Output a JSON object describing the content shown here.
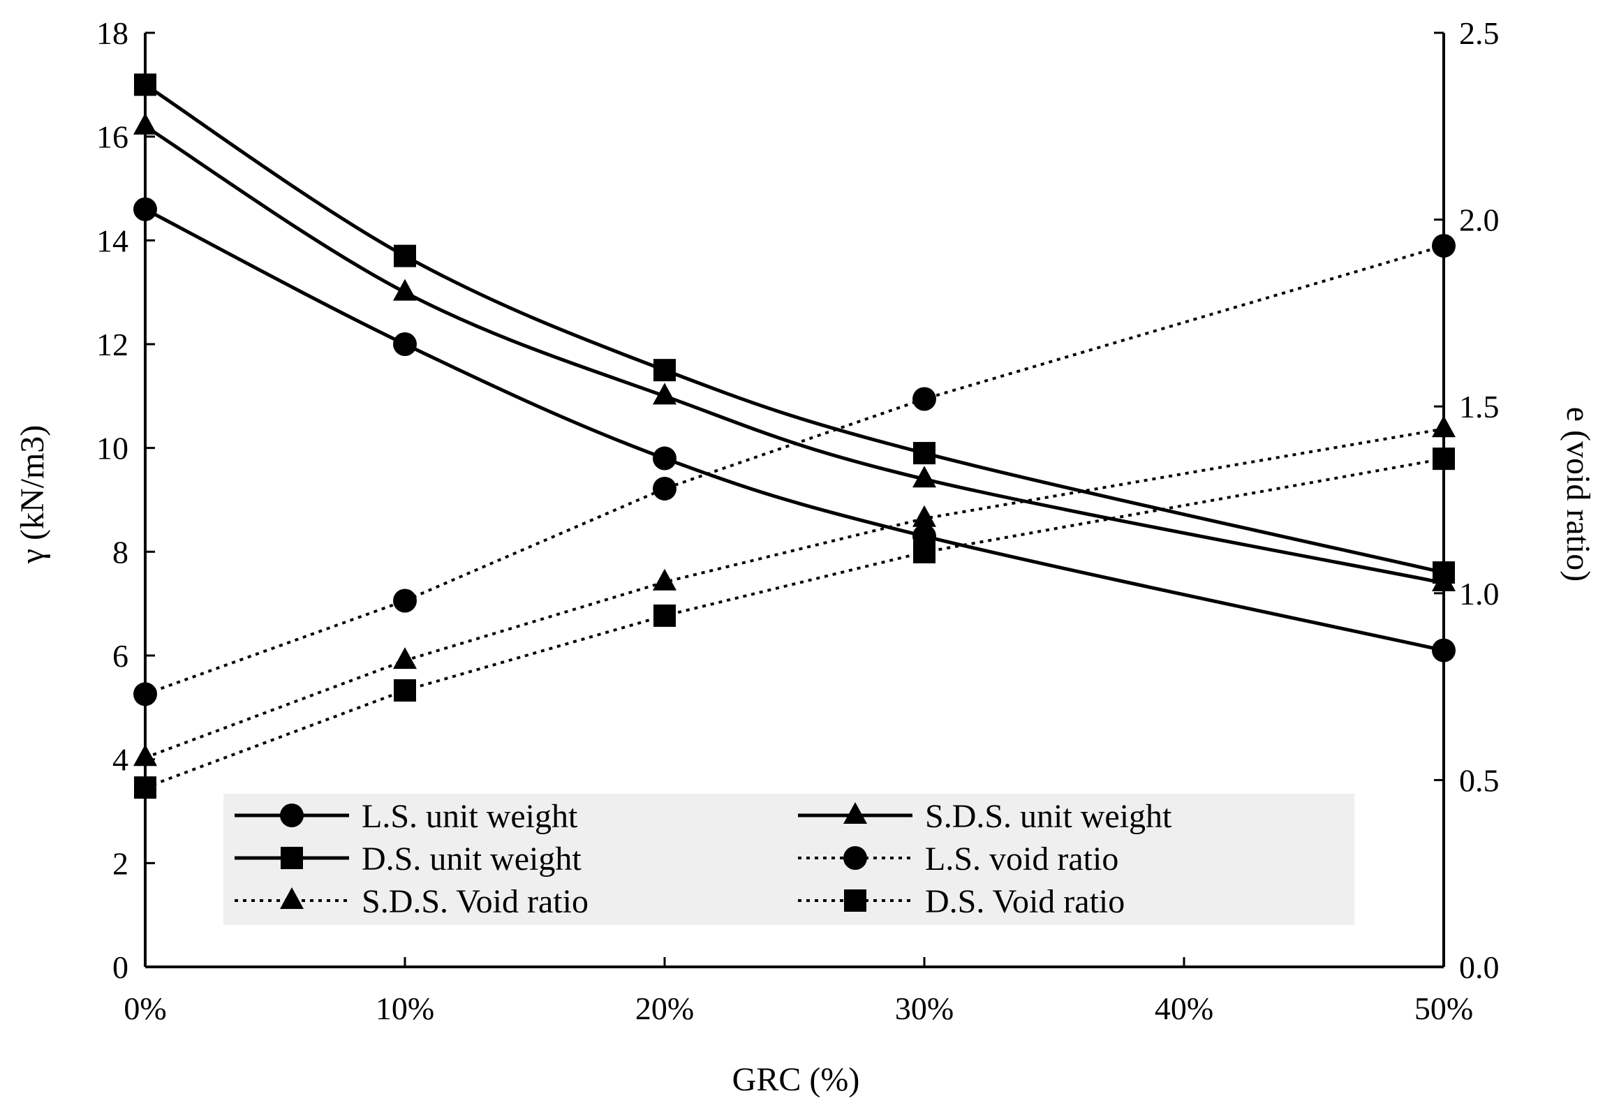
{
  "chart_data": {
    "type": "line",
    "title": "",
    "xlabel": "GRC (%)",
    "ylabel": "γ (kN/m3)",
    "y2label": "e (void ratio)",
    "categories": [
      "0%",
      "10%",
      "20%",
      "30%",
      "40%",
      "50%"
    ],
    "x": [
      0,
      10,
      20,
      30,
      50
    ],
    "xlim": [
      0,
      50
    ],
    "ylim": [
      0,
      18
    ],
    "y2lim": [
      0,
      2.5
    ],
    "yticks": [
      "0",
      "2",
      "4",
      "6",
      "8",
      "10",
      "12",
      "14",
      "16",
      "18"
    ],
    "y2ticks": [
      "0.0",
      "0.5",
      "1.0",
      "1.5",
      "2.0",
      "2.5"
    ],
    "grid": false,
    "legend_position": "bottom-center",
    "series": [
      {
        "name": "L.S. unit weight",
        "axis": "left",
        "line": "solid",
        "marker": "circle",
        "values": [
          14.6,
          12.0,
          9.8,
          8.3,
          6.1
        ]
      },
      {
        "name": "S.D.S. unit weight",
        "axis": "left",
        "line": "solid",
        "marker": "triangle",
        "values": [
          16.2,
          13.0,
          11.0,
          9.4,
          7.4
        ]
      },
      {
        "name": "D.S. unit weight",
        "axis": "left",
        "line": "solid",
        "marker": "square",
        "values": [
          17.0,
          13.7,
          11.5,
          9.9,
          7.6
        ]
      },
      {
        "name": "L.S. void ratio",
        "axis": "right",
        "line": "dotted",
        "marker": "circle",
        "values": [
          0.73,
          0.98,
          1.28,
          1.52,
          1.93
        ]
      },
      {
        "name": "S.D.S. Void ratio",
        "axis": "right",
        "line": "dotted",
        "marker": "triangle",
        "values": [
          0.56,
          0.82,
          1.03,
          1.2,
          1.44
        ]
      },
      {
        "name": "D.S. Void ratio",
        "axis": "right",
        "line": "dotted",
        "marker": "square",
        "values": [
          0.48,
          0.74,
          0.94,
          1.11,
          1.36
        ]
      }
    ],
    "legend_order": [
      0,
      1,
      2,
      3,
      4,
      5
    ]
  }
}
